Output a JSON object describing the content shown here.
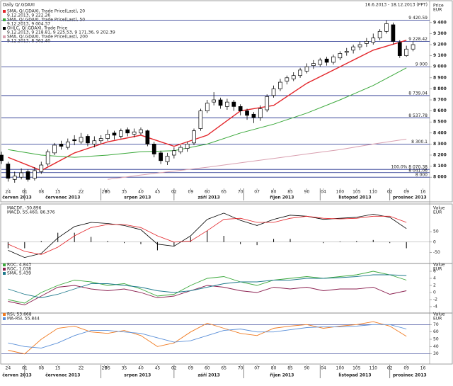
{
  "chart_data": [
    {
      "type": "candlestick",
      "title": "Daily Q/.GDAXI",
      "date_range": "16.6.2013 - 18.12.2013 (PPT)",
      "unit": [
        "Price",
        "EUR"
      ],
      "xlim": [
        -2,
        127
      ],
      "xticks": [
        {
          "value": 0,
          "label": "24"
        },
        {
          "value": 5,
          "label": "01"
        },
        {
          "value": 10,
          "label": "08"
        },
        15,
        22,
        29,
        {
          "value": 30,
          "label": "05"
        },
        35,
        40,
        45,
        {
          "value": 50,
          "label": "02"
        },
        {
          "value": 55,
          "label": "09"
        },
        60,
        65,
        70,
        {
          "value": 75,
          "label": "07"
        },
        80,
        85,
        90,
        {
          "value": 95,
          "label": "04"
        },
        100,
        105,
        110,
        {
          "value": 115,
          "label": "02"
        },
        {
          "value": 120,
          "label": "09"
        },
        {
          "value": 125,
          "label": "16"
        }
      ],
      "months": [
        {
          "value": -15,
          "label": "červen 2013"
        },
        {
          "value": 5,
          "label": "červenec 2013"
        },
        {
          "value": 28,
          "label": "srpen 2013"
        },
        {
          "value": 50,
          "label": "září 2013"
        },
        {
          "value": 71,
          "label": "říjen 2013"
        },
        {
          "value": 94,
          "label": "listopad 2013"
        },
        {
          "value": 115,
          "label": "prosinec 2013"
        }
      ],
      "ylim": [
        7905,
        9540
      ],
      "yticks": [
        {
          "value": 8000,
          "label": "8 000"
        },
        {
          "value": 8100,
          "label": "8 100"
        },
        {
          "value": 8200,
          "label": "8 200"
        },
        {
          "value": 8300,
          "label": "8 300"
        },
        {
          "value": 8400,
          "label": "8 400"
        },
        {
          "value": 8500,
          "label": "8 500"
        },
        {
          "value": 8600,
          "label": "8 600"
        },
        {
          "value": 8700,
          "label": "8 700"
        },
        {
          "value": 8800,
          "label": "8 800"
        },
        {
          "value": 8900,
          "label": "8 900"
        },
        {
          "value": 9000,
          "label": "9 000"
        },
        {
          "value": 9100,
          "label": "9 100"
        },
        {
          "value": 9200,
          "label": "9 200"
        },
        {
          "value": 9300,
          "label": "9 300"
        },
        {
          "value": 9400,
          "label": "9 400"
        }
      ],
      "levels": [
        {
          "value": 9420.59,
          "label": "9 420.59"
        },
        {
          "value": 9228.42,
          "label": "9 228.42"
        },
        {
          "value": 9000,
          "label": "9 000"
        },
        {
          "value": 8739.04,
          "label": "8 739.04"
        },
        {
          "value": 8537.78,
          "label": "8 537.78"
        },
        {
          "value": 8300.1,
          "label": "8 300.1"
        },
        {
          "value": 8070.38,
          "label": "100.0% 8 070.38"
        },
        {
          "value": 8041.06,
          "label": "8 041.06"
        },
        {
          "value": 8000,
          "label": "8 000"
        }
      ],
      "level_color": "#1c2a8a",
      "ohlc_legend": {
        "name": "OHLC, Q/.GDAXI, Trade Price",
        "label": "9.12.2013, 9 218.81, 9 225.53, 9 171.36, 9 202.39",
        "color": "#000000"
      },
      "x": [
        -2,
        0,
        2,
        4,
        6,
        8,
        10,
        12,
        14,
        16,
        18,
        20,
        22,
        24,
        26,
        28,
        30,
        32,
        34,
        36,
        38,
        40,
        42,
        44,
        46,
        48,
        50,
        52,
        54,
        56,
        58,
        60,
        62,
        64,
        66,
        68,
        70,
        72,
        74,
        76,
        78,
        80,
        82,
        84,
        86,
        88,
        90,
        92,
        94,
        96,
        98,
        100,
        102,
        104,
        106,
        108,
        110,
        112,
        114,
        116,
        118,
        120,
        122
      ],
      "open": [
        8200,
        8120,
        7980,
        8000,
        8050,
        7990,
        8050,
        8120,
        8220,
        8300,
        8270,
        8340,
        8320,
        8370,
        8300,
        8330,
        8350,
        8400,
        8370,
        8430,
        8390,
        8400,
        8420,
        8300,
        8220,
        8140,
        8200,
        8230,
        8260,
        8310,
        8440,
        8600,
        8680,
        8700,
        8640,
        8680,
        8640,
        8600,
        8570,
        8540,
        8610,
        8740,
        8800,
        8870,
        8890,
        8920,
        8960,
        9010,
        9020,
        9070,
        9040,
        9080,
        9130,
        9150,
        9180,
        9210,
        9220,
        9260,
        9320,
        9380,
        9220,
        9100,
        9160
      ],
      "high": [
        8230,
        8140,
        8050,
        8080,
        8070,
        8090,
        8140,
        8250,
        8310,
        8330,
        8350,
        8380,
        8400,
        8390,
        8370,
        8380,
        8430,
        8420,
        8440,
        8450,
        8440,
        8450,
        8430,
        8320,
        8240,
        8220,
        8270,
        8290,
        8320,
        8440,
        8620,
        8700,
        8770,
        8720,
        8710,
        8700,
        8660,
        8620,
        8590,
        8650,
        8750,
        8830,
        8890,
        8920,
        8950,
        8990,
        9030,
        9060,
        9080,
        9090,
        9110,
        9140,
        9170,
        9200,
        9230,
        9260,
        9300,
        9340,
        9420,
        9400,
        9240,
        9190,
        9230
      ],
      "low": [
        8120,
        7960,
        7950,
        7980,
        7960,
        7970,
        8030,
        8100,
        8200,
        8250,
        8250,
        8290,
        8300,
        8280,
        8270,
        8300,
        8330,
        8340,
        8350,
        8370,
        8360,
        8380,
        8280,
        8180,
        8120,
        8110,
        8170,
        8210,
        8230,
        8290,
        8420,
        8580,
        8650,
        8620,
        8610,
        8600,
        8560,
        8520,
        8490,
        8510,
        8590,
        8720,
        8780,
        8840,
        8870,
        8900,
        8940,
        8980,
        9000,
        9010,
        9020,
        9060,
        9100,
        9120,
        9150,
        9180,
        9200,
        9240,
        9300,
        9200,
        9080,
        9090,
        9140
      ],
      "close": [
        8150,
        7990,
        8010,
        8040,
        7980,
        8060,
        8110,
        8230,
        8290,
        8280,
        8320,
        8330,
        8360,
        8310,
        8330,
        8350,
        8390,
        8380,
        8420,
        8400,
        8410,
        8430,
        8300,
        8210,
        8150,
        8190,
        8240,
        8270,
        8300,
        8420,
        8600,
        8670,
        8700,
        8650,
        8680,
        8640,
        8600,
        8560,
        8540,
        8620,
        8730,
        8800,
        8860,
        8900,
        8920,
        8970,
        9000,
        9030,
        9060,
        9040,
        9090,
        9120,
        9140,
        9180,
        9200,
        9230,
        9260,
        9320,
        9390,
        9230,
        9100,
        9160,
        9200
      ],
      "series": [
        {
          "name": "SMA, Q/.GDAXI, Trade Price(Last), 20",
          "label": "9.12.2013, 9 222.26",
          "color": "#e3262b",
          "x": [
            0,
            10,
            20,
            30,
            40,
            50,
            60,
            70,
            80,
            90,
            100,
            110,
            120
          ],
          "values": [
            8180,
            8060,
            8220,
            8320,
            8380,
            8280,
            8380,
            8600,
            8650,
            8850,
            9000,
            9150,
            9240
          ]
        },
        {
          "name": "SMA, Q/.GDAXI, Trade Price(Last), 50",
          "label": "9.12.2013, 9 004.37",
          "color": "#3aa83a",
          "x": [
            0,
            10,
            20,
            30,
            40,
            50,
            60,
            70,
            80,
            90,
            100,
            110,
            120
          ],
          "values": [
            8250,
            8200,
            8180,
            8200,
            8230,
            8240,
            8300,
            8400,
            8480,
            8580,
            8700,
            8830,
            8990
          ]
        },
        {
          "name": "SMA, Q/.GDAXI, Trade Price(Last), 200",
          "label": "9.12.2013, 8 362.40",
          "color": "#d9a0b0",
          "x": [
            30,
            40,
            50,
            60,
            70,
            80,
            90,
            100,
            110,
            120
          ],
          "values": [
            7980,
            8020,
            8055,
            8090,
            8130,
            8170,
            8210,
            8250,
            8300,
            8345
          ]
        }
      ]
    },
    {
      "type": "macd",
      "unit": [
        "Value",
        "EUR"
      ],
      "ylim": [
        -90,
        150
      ],
      "yticks": [
        -50,
        0,
        50
      ],
      "x": [
        0,
        5,
        10,
        15,
        20,
        25,
        30,
        35,
        40,
        45,
        50,
        55,
        60,
        65,
        70,
        75,
        80,
        85,
        90,
        95,
        100,
        105,
        110,
        115,
        120
      ],
      "histogram": {
        "name": "MACDF, -30.896",
        "color": "#000000",
        "values": [
          -30,
          -30,
          5,
          45,
          45,
          25,
          5,
          -5,
          -10,
          -40,
          -20,
          25,
          55,
          30,
          -10,
          -15,
          15,
          15,
          0,
          -5,
          3,
          5,
          10,
          -5,
          -30
        ]
      },
      "series": [
        {
          "name": "MACD, 55.460, 86.376",
          "color": "#1b2f9c",
          "values": [
            -40,
            -75,
            -55,
            20,
            75,
            95,
            90,
            80,
            60,
            -10,
            -20,
            30,
            110,
            140,
            105,
            80,
            110,
            130,
            125,
            110,
            115,
            120,
            135,
            120,
            65
          ],
          "line_color": "#000000",
          "signal_color": "#e3262b",
          "signal": [
            -10,
            -45,
            -60,
            -25,
            30,
            70,
            85,
            85,
            70,
            30,
            0,
            5,
            55,
            110,
            115,
            95,
            95,
            115,
            125,
            115,
            112,
            115,
            125,
            125,
            95
          ]
        }
      ]
    },
    {
      "type": "line",
      "unit": [
        "Value",
        "EUR"
      ],
      "ylim": [
        -5,
        7
      ],
      "yticks": [
        -4,
        -2,
        0,
        2,
        4,
        6
      ],
      "x": [
        0,
        5,
        10,
        15,
        20,
        25,
        30,
        35,
        40,
        45,
        50,
        55,
        60,
        65,
        70,
        75,
        80,
        85,
        90,
        95,
        100,
        105,
        110,
        115,
        120
      ],
      "series": [
        {
          "name": "ROC, 4.843",
          "color": "#3aa83a",
          "values": [
            -2,
            -3,
            0,
            2,
            3.5,
            3,
            2,
            2.5,
            1,
            -1,
            -0.5,
            2,
            4,
            4.5,
            3,
            2,
            3.5,
            4,
            4.5,
            4,
            4.5,
            5,
            6,
            5,
            3.5
          ]
        },
        {
          "name": "ROC, 1.038",
          "color": "#8a1f4f",
          "values": [
            -2.5,
            -3.5,
            -1,
            1.5,
            2,
            1,
            0.5,
            1,
            0,
            -1.5,
            -1,
            0.5,
            2,
            1.5,
            0.5,
            0,
            1.5,
            1,
            1.5,
            0.5,
            1,
            1,
            1.5,
            -0.5,
            0.5
          ]
        },
        {
          "name": "SMA, 5.439",
          "color": "#1f7a8c",
          "values": [
            1,
            -0.5,
            -1.5,
            -0.5,
            1,
            2.5,
            2.5,
            2,
            1.5,
            0.5,
            0,
            0.5,
            1.5,
            2.5,
            3,
            3,
            3.5,
            3.5,
            4,
            4,
            4.2,
            4.5,
            5,
            5,
            4.8
          ]
        }
      ]
    },
    {
      "type": "line",
      "unit": [
        "Value",
        "EUR"
      ],
      "ylim": [
        20,
        80
      ],
      "yticks": [
        30,
        40,
        50,
        60,
        70
      ],
      "hlines": [
        30,
        70
      ],
      "hline_color": "#1c2a8a",
      "x": [
        0,
        5,
        10,
        15,
        20,
        25,
        30,
        35,
        40,
        45,
        50,
        55,
        60,
        65,
        70,
        75,
        80,
        85,
        90,
        95,
        100,
        105,
        110,
        115,
        120
      ],
      "series": [
        {
          "name": "RSI, 53.668",
          "color": "#f07a20",
          "values": [
            35,
            30,
            50,
            65,
            68,
            60,
            58,
            62,
            55,
            40,
            45,
            60,
            72,
            65,
            58,
            55,
            65,
            68,
            70,
            65,
            68,
            70,
            74,
            68,
            54
          ]
        },
        {
          "name": "MA-RSI, 55.844",
          "color": "#5a8fd8",
          "values": [
            45,
            40,
            38,
            45,
            55,
            62,
            62,
            60,
            58,
            52,
            46,
            48,
            55,
            62,
            64,
            60,
            60,
            63,
            66,
            67,
            67,
            68,
            70,
            70,
            64
          ]
        }
      ]
    }
  ]
}
